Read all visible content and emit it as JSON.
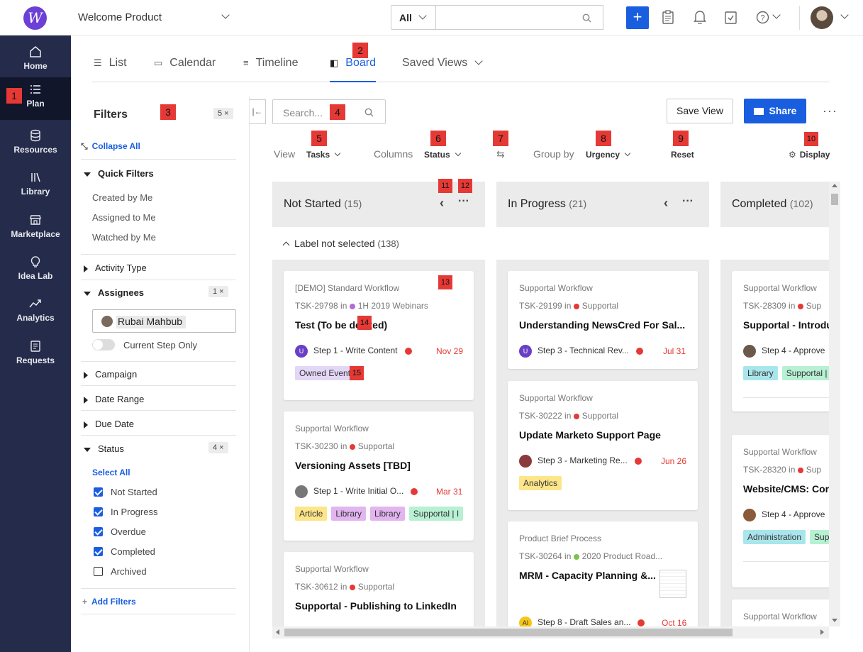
{
  "topbar": {
    "logo_letter": "W",
    "product": "Welcome Product",
    "search_scope": "All",
    "search_value": ""
  },
  "sidebar": {
    "items": [
      {
        "label": "Home",
        "icon": "home-icon"
      },
      {
        "label": "Plan",
        "icon": "list-icon"
      },
      {
        "label": "Resources",
        "icon": "database-icon"
      },
      {
        "label": "Library",
        "icon": "library-icon"
      },
      {
        "label": "Marketplace",
        "icon": "store-icon"
      },
      {
        "label": "Idea Lab",
        "icon": "lightbulb-icon"
      },
      {
        "label": "Analytics",
        "icon": "trend-icon"
      },
      {
        "label": "Requests",
        "icon": "document-icon"
      }
    ]
  },
  "badges": [
    "1",
    "2",
    "3",
    "4",
    "5",
    "6",
    "7",
    "8",
    "9",
    "10",
    "11",
    "12",
    "13",
    "14",
    "15"
  ],
  "tabs": [
    {
      "label": "List",
      "icon": "list-icon"
    },
    {
      "label": "Calendar",
      "icon": "calendar-icon"
    },
    {
      "label": "Timeline",
      "icon": "timeline-icon"
    },
    {
      "label": "Board",
      "icon": "board-icon"
    },
    {
      "label": "Saved Views",
      "icon": "chevron-down-icon"
    }
  ],
  "filters": {
    "title": "Filters",
    "count": "5 ×",
    "collapse_all": "Collapse All",
    "quick_filters": "Quick Filters",
    "quick": [
      "Created by Me",
      "Assigned to Me",
      "Watched by Me"
    ],
    "activity_type": "Activity Type",
    "assignees": "Assignees",
    "assignees_count": "1 ×",
    "assignee_name": "Rubai Mahbub",
    "current_step_only": "Current Step Only",
    "campaign": "Campaign",
    "date_range": "Date Range",
    "due_date": "Due Date",
    "status": "Status",
    "status_count": "4 ×",
    "select_all": "Select All",
    "statuses": [
      {
        "label": "Not Started",
        "checked": true
      },
      {
        "label": "In Progress",
        "checked": true
      },
      {
        "label": "Overdue",
        "checked": true
      },
      {
        "label": "Completed",
        "checked": true
      },
      {
        "label": "Archived",
        "checked": false
      }
    ],
    "add_filters": "Add Filters"
  },
  "toolbar": {
    "search_placeholder": "Search...",
    "save_view": "Save View",
    "share": "Share",
    "view_label": "View",
    "view_value": "Tasks",
    "columns_label": "Columns",
    "columns_value": "Status",
    "group_label": "Group by",
    "group_value": "Urgency",
    "reset": "Reset",
    "display": "Display"
  },
  "board": {
    "group_label": "Label not selected",
    "group_count": "(138)",
    "columns": [
      {
        "title": "Not Started",
        "count": "(15)",
        "cards": [
          {
            "workflow": "[DEMO] Standard Workflow",
            "task": "TSK-29798",
            "project": "1H 2019 Webinars",
            "project_color": "#b36bd6",
            "title": "Test (To be deleted)",
            "avatar": "U",
            "avatar_color": "#6a3fc7",
            "step": "Step 1 - Write Content",
            "due": "Nov 29",
            "tags": [
              {
                "label": "Owned Event",
                "color": "#e4d6f5"
              }
            ]
          },
          {
            "workflow": "Supportal Workflow",
            "task": "TSK-30230",
            "project": "Supportal",
            "project_color": "#e53935",
            "title": "Versioning Assets [TBD]",
            "avatar": "",
            "avatar_color": "#777",
            "step": "Step 1 - Write Initial O...",
            "due": "Mar 31",
            "tags": [
              {
                "label": "Article",
                "color": "#fde58a"
              },
              {
                "label": "Library",
                "color": "#e2b5f0"
              },
              {
                "label": "Library",
                "color": "#e2b5f0"
              },
              {
                "label": "Supportal | I",
                "color": "#b7f0d2"
              }
            ]
          },
          {
            "workflow": "Supportal Workflow",
            "task": "TSK-30612",
            "project": "Supportal",
            "project_color": "#e53935",
            "title": "Supportal - Publishing to LinkedIn",
            "avatar": "",
            "avatar_color": "#333",
            "step": "",
            "due": "",
            "tags": []
          }
        ]
      },
      {
        "title": "In Progress",
        "count": "(21)",
        "cards": [
          {
            "workflow": "Supportal Workflow",
            "task": "TSK-29199",
            "project": "Supportal",
            "project_color": "#e53935",
            "title": "Understanding NewsCred For Sal...",
            "avatar": "U",
            "avatar_color": "#6a3fc7",
            "step": "Step 3 - Technical Rev...",
            "due": "Jul 31",
            "tags": []
          },
          {
            "workflow": "Supportal Workflow",
            "task": "TSK-30222",
            "project": "Supportal",
            "project_color": "#e53935",
            "title": "Update Marketo Support Page",
            "avatar": "",
            "avatar_color": "#8a3b3b",
            "step": "Step 3 - Marketing Re...",
            "due": "Jun 26",
            "tags": [
              {
                "label": "Analytics",
                "color": "#fde58a"
              }
            ]
          },
          {
            "workflow": "Product Brief Process",
            "task": "TSK-30264",
            "project": "2020 Product Road...",
            "project_color": "#7cc24a",
            "title": "MRM - Capacity Planning &...",
            "avatar": "AI",
            "avatar_color": "#f5c518",
            "step": "Step 8 - Draft Sales an...",
            "due": "Oct 16",
            "tags": []
          }
        ]
      },
      {
        "title": "Completed",
        "count": "(102)",
        "cards": [
          {
            "workflow": "Supportal Workflow",
            "task": "TSK-28309",
            "project": "Sup",
            "project_color": "#e53935",
            "title": "Supportal - Introdu",
            "avatar": "",
            "avatar_color": "#6b5a4a",
            "step": "Step 4 - Approve",
            "due": "",
            "tags": [
              {
                "label": "Library",
                "color": "#a9e6ec"
              },
              {
                "label": "Supportal |",
                "color": "#b7f0d2"
              }
            ]
          },
          {
            "workflow": "Supportal Workflow",
            "task": "TSK-28320",
            "project": "Sup",
            "project_color": "#e53935",
            "title": "Website/CMS: Cor",
            "avatar": "",
            "avatar_color": "#8a5a3a",
            "step": "Step 4 - Approve",
            "due": "",
            "tags": [
              {
                "label": "Administration",
                "color": "#a9e6ec"
              },
              {
                "label": "Sup",
                "color": "#b7f0d2"
              }
            ]
          },
          {
            "workflow": "Supportal Workflow",
            "task": "",
            "project": "",
            "project_color": "",
            "title": "",
            "avatar": "",
            "avatar_color": "",
            "step": "",
            "due": "",
            "tags": []
          }
        ]
      }
    ]
  }
}
